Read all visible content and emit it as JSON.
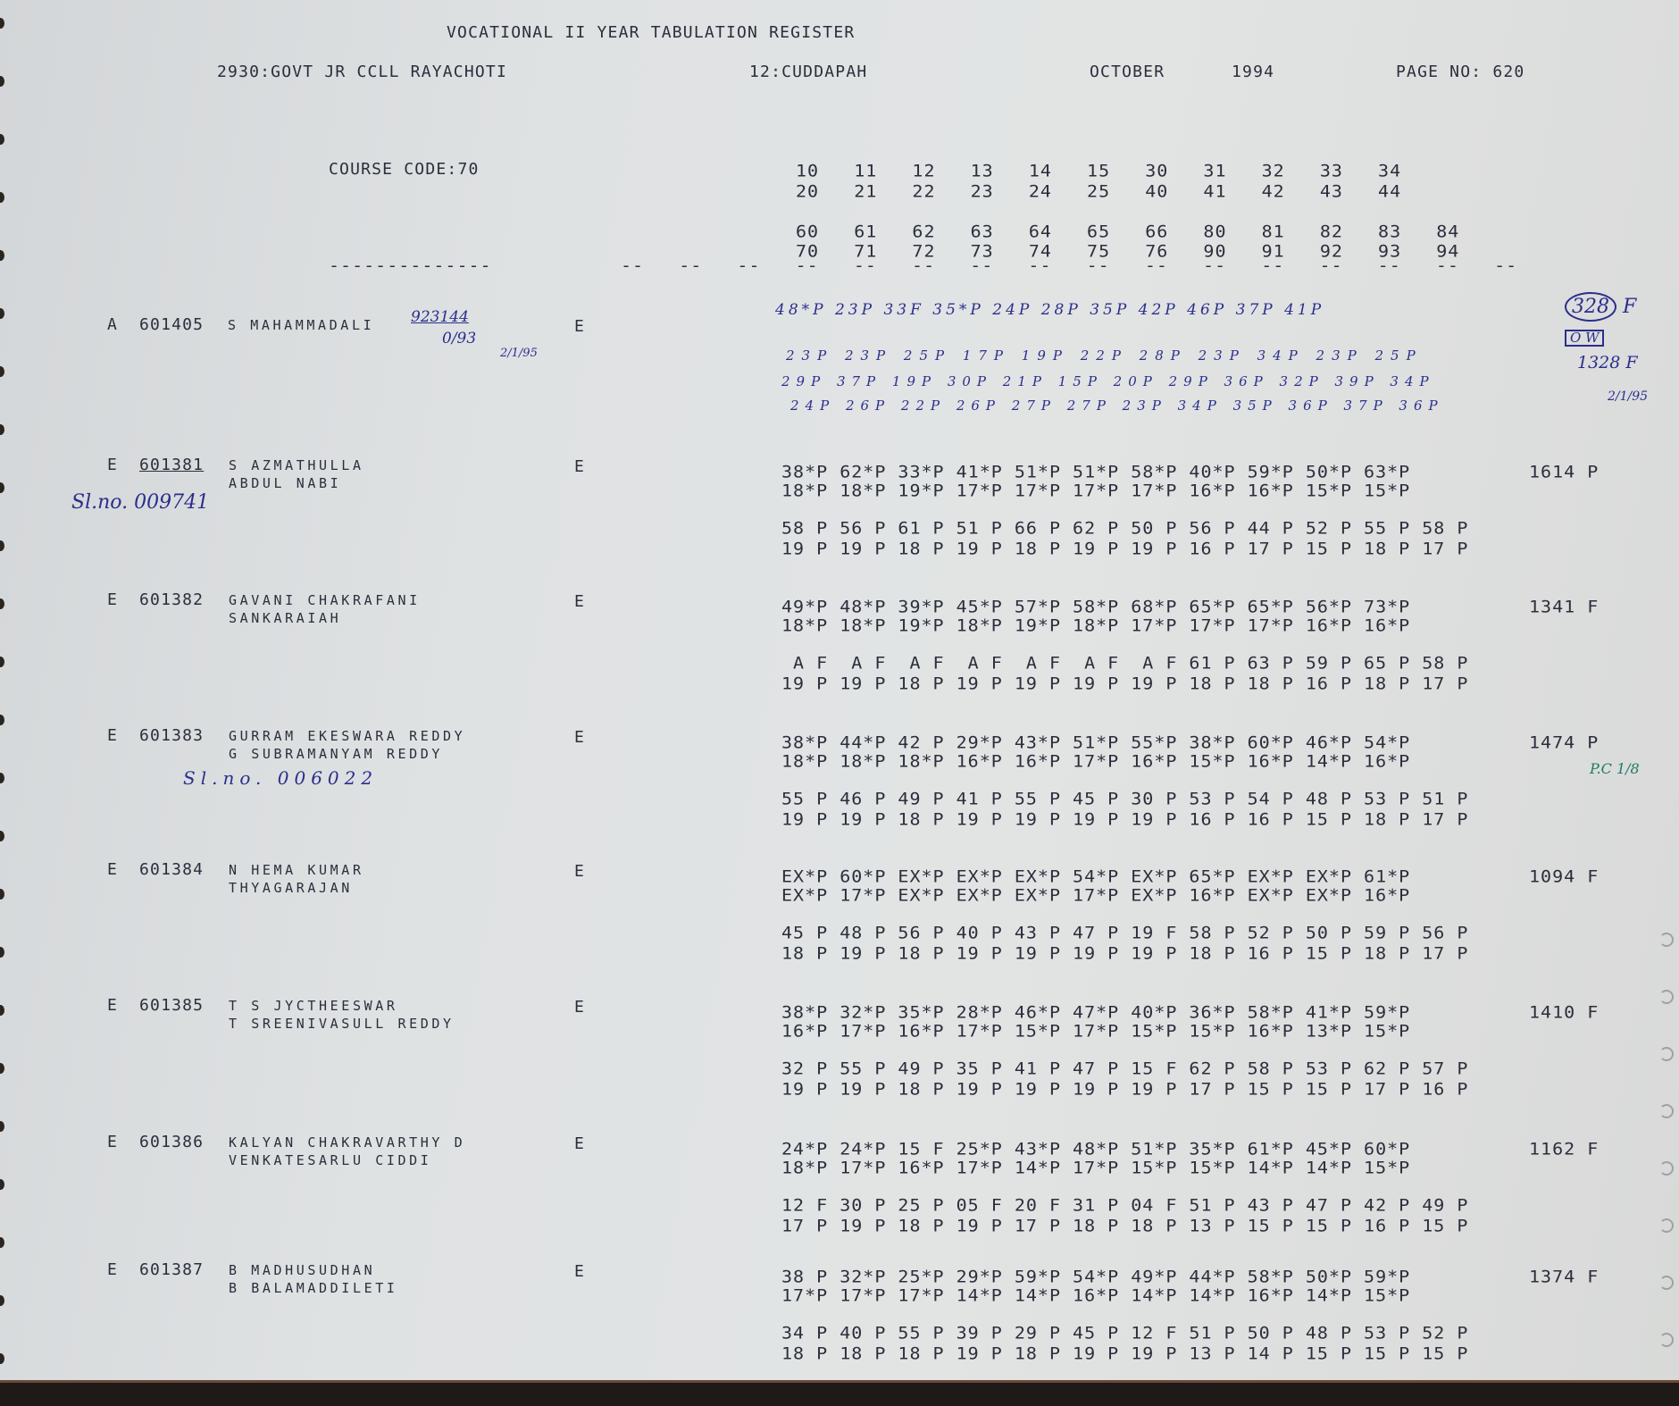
{
  "header": {
    "title": "VOCATIONAL II YEAR TABULATION REGISTER",
    "college": "2930:GOVT JR CCLL RAYACHOTI",
    "district": "12:CUDDAPAH",
    "month": "OCTOBER",
    "year": "1994",
    "page": "PAGE NO: 620",
    "course_code": "COURSE CODE:70"
  },
  "columns": {
    "row1": "10   11   12   13   14   15   30   31   32   33   34",
    "row2": "20   21   22   23   24   25   40   41   42   43   44",
    "row3": "60   61   62   63   64   65   66   80   81   82   83   84",
    "row4": "70   71   72   73   74   75   76   90   91   92   93   94",
    "rule_left": "--------------",
    "rule_right": "--   --   --   --   --   --   --   --   --   --   --   --   --   --   --   --"
  },
  "first_record": {
    "category": "A",
    "roll": "601405",
    "name": "S MAHAMMADALI",
    "medium": "E",
    "hand_note_top": "923144",
    "hand_note_bottom": "0/93",
    "hand_date": "2/1/95",
    "hand_marks_1": "48*P 23P 33F 35*P 24P 28P 35P 42P 46P 37P 41P",
    "hand_marks_2": "23P 23P 25P 17P 19P 22P 28P 23P 34P 23P 25P",
    "hand_marks_3": "29P 37P 19P 30P 21P 15P 20P 29P 36P 32P 39P 34P",
    "hand_marks_4": "24P 26P 22P 26P 27P 27P 23P 34P 35P 36P 37P 36P",
    "hand_total": "328",
    "hand_total_result": "F",
    "hand_ow": "O W",
    "hand_total2": "1328 F",
    "hand_date2": "2/1/95"
  },
  "records": [
    {
      "category": "E",
      "roll": "601381",
      "name1": "S AZMATHULLA",
      "name2": "ABDUL NABI",
      "medium": "E",
      "m1": "38*P 62*P 33*P 41*P 51*P 51*P 58*P 40*P 59*P 50*P 63*P",
      "m2": "18*P 18*P 19*P 17*P 17*P 17*P 17*P 16*P 16*P 15*P 15*P",
      "m3": "58 P 56 P 61 P 51 P 66 P 62 P 50 P 56 P 44 P 52 P 55 P 58 P",
      "m4": "19 P 19 P 18 P 19 P 18 P 19 P 19 P 16 P 17 P 15 P 18 P 17 P",
      "total": "1614 P",
      "note": "Sl.no. 009741"
    },
    {
      "category": "E",
      "roll": "601382",
      "name1": "GAVANI CHAKRAFANI",
      "name2": "SANKARAIAH",
      "medium": "E",
      "m1": "49*P 48*P 39*P 45*P 57*P 58*P 68*P 65*P 65*P 56*P 73*P",
      "m2": "18*P 18*P 19*P 18*P 19*P 18*P 17*P 17*P 17*P 16*P 16*P",
      "m3": " A F  A F  A F  A F  A F  A F  A F 61 P 63 P 59 P 65 P 58 P",
      "m4": "19 P 19 P 18 P 19 P 19 P 19 P 19 P 18 P 18 P 16 P 18 P 17 P",
      "total": "1341 F"
    },
    {
      "category": "E",
      "roll": "601383",
      "name1": "GURRAM EKESWARA REDDY",
      "name2": "G SUBRAMANYAM REDDY",
      "medium": "E",
      "m1": "38*P 44*P 42 P 29*P 43*P 51*P 55*P 38*P 60*P 46*P 54*P",
      "m2": "18*P 18*P 18*P 16*P 16*P 17*P 16*P 15*P 16*P 14*P 16*P",
      "m3": "55 P 46 P 49 P 41 P 55 P 45 P 30 P 53 P 54 P 48 P 53 P 51 P",
      "m4": "19 P 19 P 18 P 19 P 19 P 19 P 19 P 16 P 16 P 15 P 18 P 17 P",
      "total": "1474 P",
      "note": "Sl.no. 006022",
      "side_note": "P.C 1/8"
    },
    {
      "category": "E",
      "roll": "601384",
      "name1": "N HEMA KUMAR",
      "name2": "THYAGARAJAN",
      "medium": "E",
      "m1": "EX*P 60*P EX*P EX*P EX*P 54*P EX*P 65*P EX*P EX*P 61*P",
      "m2": "EX*P 17*P EX*P EX*P EX*P 17*P EX*P 16*P EX*P EX*P 16*P",
      "m3": "45 P 48 P 56 P 40 P 43 P 47 P 19 F 58 P 52 P 50 P 59 P 56 P",
      "m4": "18 P 19 P 18 P 19 P 19 P 19 P 19 P 18 P 16 P 15 P 18 P 17 P",
      "total": "1094 F"
    },
    {
      "category": "E",
      "roll": "601385",
      "name1": "T S JYCTHEESWAR",
      "name2": "T SREENIVASULL REDDY",
      "medium": "E",
      "m1": "38*P 32*P 35*P 28*P 46*P 47*P 40*P 36*P 58*P 41*P 59*P",
      "m2": "16*P 17*P 16*P 17*P 15*P 17*P 15*P 15*P 16*P 13*P 15*P",
      "m3": "32 P 55 P 49 P 35 P 41 P 47 P 15 F 62 P 58 P 53 P 62 P 57 P",
      "m4": "19 P 19 P 18 P 19 P 19 P 19 P 19 P 17 P 15 P 15 P 17 P 16 P",
      "total": "1410 F"
    },
    {
      "category": "E",
      "roll": "601386",
      "name1": "KALYAN CHAKRAVARTHY D",
      "name2": "VENKATESARLU CIDDI",
      "medium": "E",
      "m1": "24*P 24*P 15 F 25*P 43*P 48*P 51*P 35*P 61*P 45*P 60*P",
      "m2": "18*P 17*P 16*P 17*P 14*P 17*P 15*P 15*P 14*P 14*P 15*P",
      "m3": "12 F 30 P 25 P 05 F 20 F 31 P 04 F 51 P 43 P 47 P 42 P 49 P",
      "m4": "17 P 19 P 18 P 19 P 17 P 18 P 18 P 13 P 15 P 15 P 16 P 15 P",
      "total": "1162 F"
    },
    {
      "category": "E",
      "roll": "601387",
      "name1": "B MADHUSUDHAN",
      "name2": "B BALAMADDILETI",
      "medium": "E",
      "m1": "38 P 32*P 25*P 29*P 59*P 54*P 49*P 44*P 58*P 50*P 59*P",
      "m2": "17*P 17*P 17*P 14*P 14*P 16*P 14*P 14*P 16*P 14*P 15*P",
      "m3": "34 P 40 P 55 P 39 P 29 P 45 P 12 F 51 P 50 P 48 P 53 P 52 P",
      "m4": "18 P 18 P 18 P 19 P 18 P 19 P 19 P 13 P 14 P 15 P 15 P 15 P",
      "total": "1374 F"
    }
  ]
}
